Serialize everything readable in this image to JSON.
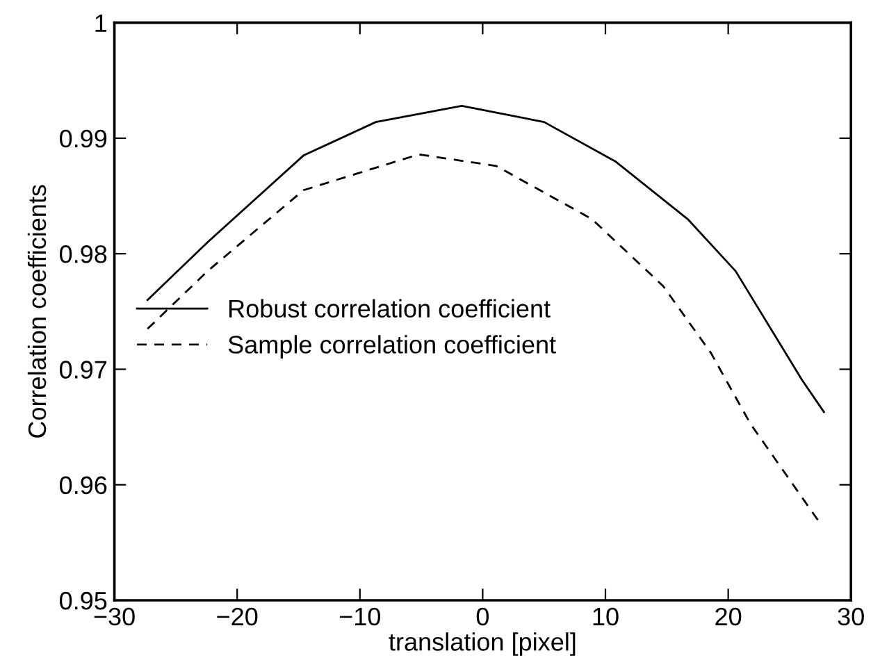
{
  "chart_data": {
    "type": "line",
    "xlabel": "translation [pixel]",
    "ylabel": "Correlation coefficients",
    "xlim": [
      -30,
      30
    ],
    "xticks": [
      {
        "value": -30,
        "label": "−30"
      },
      {
        "value": -20,
        "label": "−20"
      },
      {
        "value": -10,
        "label": "−10"
      },
      0,
      10,
      20,
      30
    ],
    "ylim": [
      0.95,
      1
    ],
    "yticks": [
      0.95,
      0.96,
      0.97,
      0.98,
      0.99,
      1
    ],
    "grid": false,
    "legend": "left",
    "series": [
      {
        "name": "Robust correlation coefficient",
        "color": "#000000",
        "line_style": "solid",
        "x": [
          -27.3,
          -22.4,
          -14.6,
          -8.7,
          -1.7,
          5.0,
          10.8,
          16.7,
          20.6,
          26.0,
          27.8
        ],
        "values": [
          0.976,
          0.981,
          0.9885,
          0.9914,
          0.9928,
          0.9914,
          0.988,
          0.983,
          0.9785,
          0.9691,
          0.9663
        ]
      },
      {
        "name": "Sample correlation coefficient",
        "color": "#000000",
        "line_style": "dashed",
        "x": [
          -27.3,
          -22.4,
          -14.6,
          -5.2,
          1.1,
          8.9,
          14.7,
          18.6,
          21.8,
          27.4
        ],
        "values": [
          0.9735,
          0.9785,
          0.9855,
          0.9886,
          0.9876,
          0.983,
          0.9772,
          0.9714,
          0.9653,
          0.9568
        ]
      }
    ]
  }
}
